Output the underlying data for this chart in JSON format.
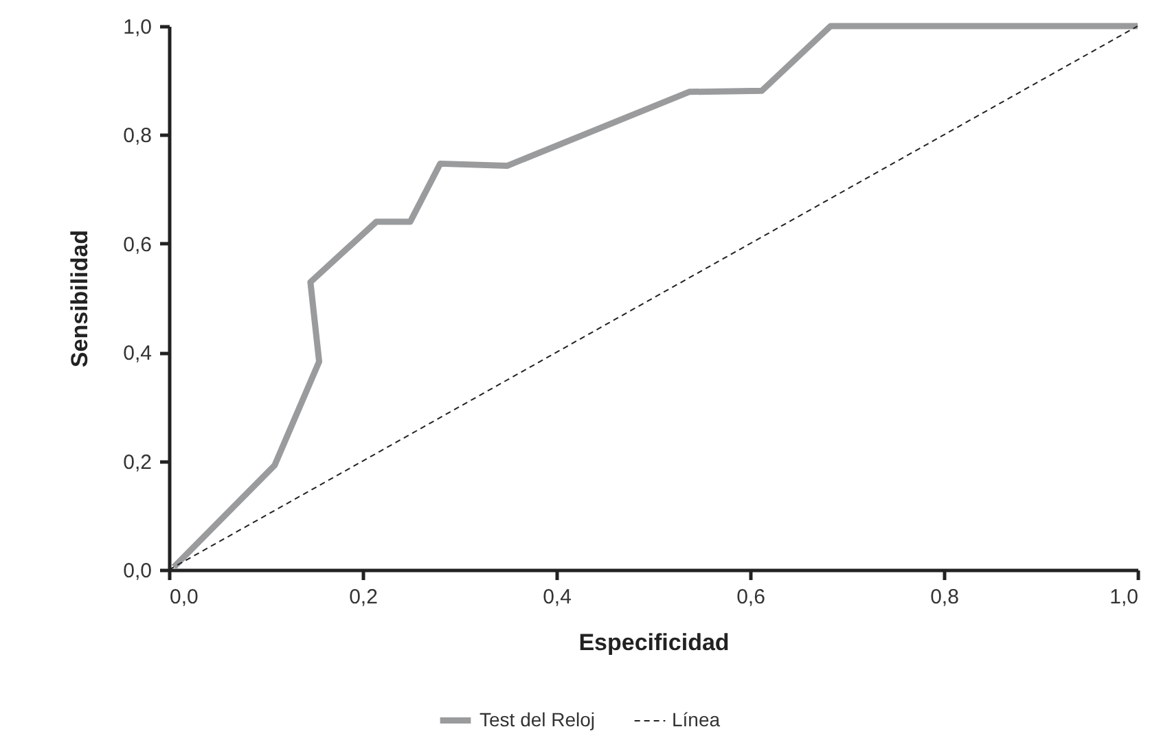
{
  "chart_data": {
    "type": "line",
    "xlabel": "Especificidad",
    "ylabel": "Sensibilidad",
    "xlim": [
      0,
      1
    ],
    "ylim": [
      0,
      1
    ],
    "xticks": [
      {
        "value": 0,
        "label": "0,0"
      },
      {
        "value": 0.2,
        "label": "0,2"
      },
      {
        "value": 0.4,
        "label": "0,4"
      },
      {
        "value": 0.6,
        "label": "0,6"
      },
      {
        "value": 0.8,
        "label": "0,8"
      },
      {
        "value": 1,
        "label": "1,0"
      }
    ],
    "yticks": [
      {
        "value": 0,
        "label": "0,0"
      },
      {
        "value": 0.2,
        "label": "0,2"
      },
      {
        "value": 0.4,
        "label": "0,4"
      },
      {
        "value": 0.6,
        "label": "0,6"
      },
      {
        "value": 0.8,
        "label": "0,8"
      },
      {
        "value": 1,
        "label": "1,0"
      }
    ],
    "grid": false,
    "legend": "bottom",
    "series": [
      {
        "name": "Test del Reloj",
        "color": "#9a9b9d",
        "line_style": "solid",
        "x": [
          0.005,
          0.109,
          0.155,
          0.146,
          0.214,
          0.249,
          0.28,
          0.349,
          0.537,
          0.612,
          0.683,
          1.0
        ],
        "values": [
          0.005,
          0.192,
          0.383,
          0.529,
          0.64,
          0.64,
          0.747,
          0.743,
          0.879,
          0.881,
          1.0,
          1.0
        ]
      },
      {
        "name": "Línea",
        "color": "#222222",
        "line_style": "dashed",
        "x": [
          0,
          1
        ],
        "values": [
          0,
          1
        ]
      }
    ]
  }
}
